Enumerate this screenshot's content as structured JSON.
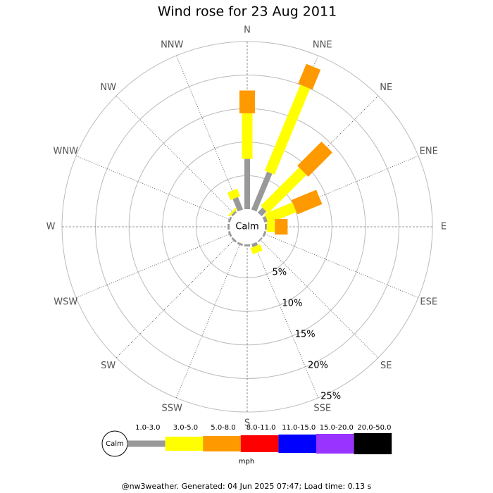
{
  "chart_data": {
    "type": "windrose",
    "title": "Wind rose for 23 Aug 2011",
    "center_label": "Calm",
    "unit_label": "mph",
    "footer": "@nw3weather. Generated: 04 Jun 2025 07:47; Load time: 0.13 s",
    "categories": [
      "N",
      "NNE",
      "NE",
      "ENE",
      "E",
      "ESE",
      "SE",
      "SSE",
      "S",
      "SSW",
      "SW",
      "WSW",
      "W",
      "WNW",
      "NW",
      "NNW"
    ],
    "rlim": [
      0,
      25
    ],
    "rticks": [
      {
        "value": 5,
        "label": "5%"
      },
      {
        "value": 10,
        "label": "10%"
      },
      {
        "value": 15,
        "label": "15%"
      },
      {
        "value": 20,
        "label": "20%"
      },
      {
        "value": 25,
        "label": "25%"
      }
    ],
    "series": [
      {
        "name": "1.0-3.0",
        "color": "#999999",
        "values": [
          7.5,
          6.1,
          1.0,
          0.5,
          0.3,
          0.3,
          0.2,
          0.5,
          0.3,
          0.3,
          0.3,
          0.3,
          0.3,
          0.3,
          0.3,
          2.0
        ]
      },
      {
        "name": "3.0-5.0",
        "color": "#ffff00",
        "values": [
          6.8,
          13.9,
          8.1,
          4.5,
          1.2,
          0,
          0,
          1.0,
          0,
          0,
          0,
          0,
          0,
          0,
          0.3,
          1.2
        ]
      },
      {
        "name": "5.0-8.0",
        "color": "#ff9900",
        "values": [
          3.4,
          3.2,
          5.1,
          4.0,
          1.9,
          0,
          0,
          0,
          0,
          0,
          0,
          0,
          0,
          0,
          0,
          0
        ]
      },
      {
        "name": "8.0-11.0",
        "color": "#ff0000",
        "values": [
          0,
          0,
          0,
          0,
          0,
          0,
          0,
          0,
          0,
          0,
          0,
          0,
          0,
          0,
          0,
          0
        ]
      },
      {
        "name": "11.0-15.0",
        "color": "#0000ff",
        "values": [
          0,
          0,
          0,
          0,
          0,
          0,
          0,
          0,
          0,
          0,
          0,
          0,
          0,
          0,
          0,
          0
        ]
      },
      {
        "name": "15.0-20.0",
        "color": "#9933ff",
        "values": [
          0,
          0,
          0,
          0,
          0,
          0,
          0,
          0,
          0,
          0,
          0,
          0,
          0,
          0,
          0,
          0
        ]
      },
      {
        "name": "20.0-50.0",
        "color": "#000000",
        "values": [
          0,
          0,
          0,
          0,
          0,
          0,
          0,
          0,
          0,
          0,
          0,
          0,
          0,
          0,
          0,
          0
        ]
      }
    ]
  }
}
